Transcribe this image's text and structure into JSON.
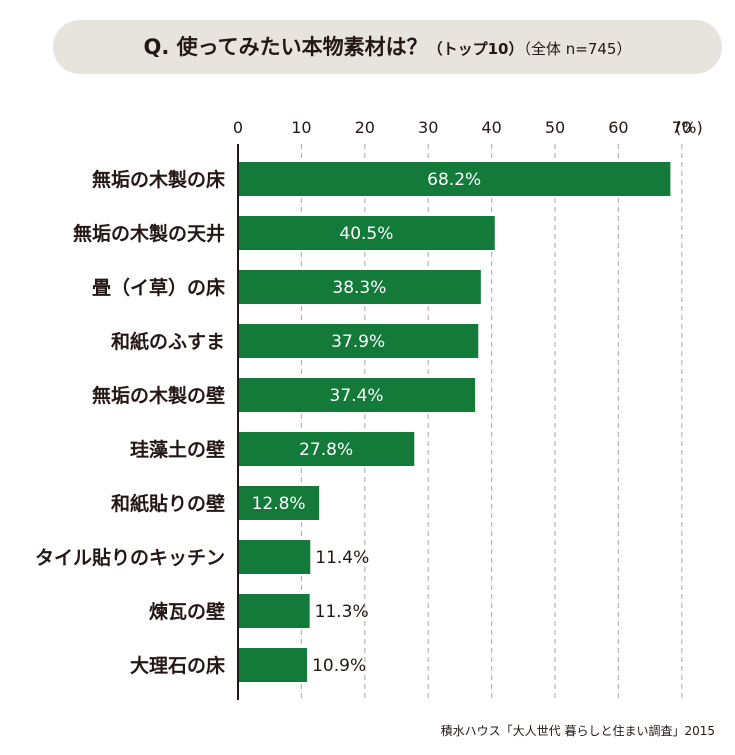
{
  "header": {
    "title_main": "Q. 使ってみたい本物素材は？",
    "title_sub": "（トップ10）",
    "title_note": "（全体 n=745）"
  },
  "source": "積水ハウス「大人世代 暮らしと住まい調査」2015",
  "colors": {
    "bar": "#137a3a",
    "grid": "#b5b5b5",
    "axis": "#231815",
    "text": "#231815",
    "pill": "#e6e4dc"
  },
  "chart_data": {
    "type": "bar",
    "orientation": "horizontal",
    "categories": [
      "無垢の木製の床",
      "無垢の木製の天井",
      "畳（イ草）の床",
      "和紙のふすま",
      "無垢の木製の壁",
      "珪藻土の壁",
      "和紙貼りの壁",
      "タイル貼りのキッチン",
      "煉瓦の壁",
      "大理石の床"
    ],
    "values": [
      68.2,
      40.5,
      38.3,
      37.9,
      37.4,
      27.8,
      12.8,
      11.4,
      11.3,
      10.9
    ],
    "value_labels": [
      "68.2%",
      "40.5%",
      "38.3%",
      "37.9%",
      "37.4%",
      "27.8%",
      "12.8%",
      "11.4%",
      "11.3%",
      "10.9%"
    ],
    "xticks": [
      "0",
      "10",
      "20",
      "30",
      "40",
      "50",
      "60",
      "70"
    ],
    "xunit": "(%)",
    "xlim": [
      0,
      70
    ],
    "grid": true
  }
}
